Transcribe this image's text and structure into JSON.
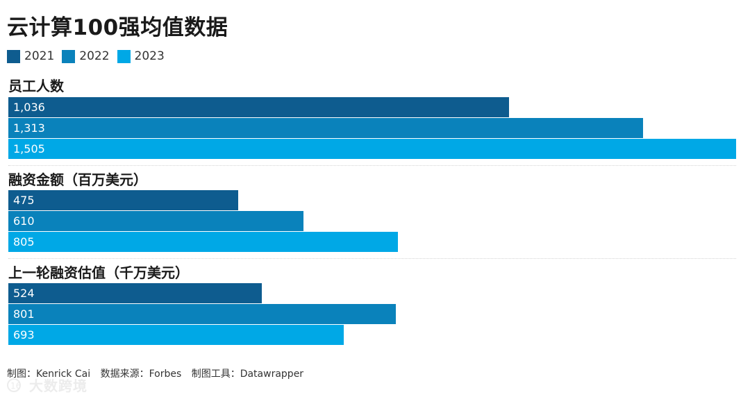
{
  "chart_data": {
    "type": "bar",
    "orientation": "horizontal",
    "title": "云计算100强均值数据",
    "legend": [
      "2021",
      "2022",
      "2023"
    ],
    "legend_position": "top-left",
    "colors": {
      "2021": "#0e5c8f",
      "2022": "#0a82bb",
      "2023": "#00a8e6"
    },
    "panels": [
      {
        "title": "员工人数",
        "labels": [
          "1,036",
          "1,313",
          "1,505"
        ],
        "values": [
          1036,
          1313,
          1505
        ],
        "xlim": [
          0,
          1505
        ]
      },
      {
        "title": "融资金额（百万美元）",
        "labels": [
          "475",
          "610",
          "805"
        ],
        "values": [
          475,
          610,
          805
        ],
        "xlim": [
          0,
          1505
        ]
      },
      {
        "title": "上一轮融资估值（千万美元）",
        "labels": [
          "524",
          "801",
          "693"
        ],
        "values": [
          524,
          801,
          693
        ],
        "xlim": [
          0,
          1505
        ]
      }
    ],
    "grid": false
  },
  "footer": {
    "author": "制图：Kenrick Cai",
    "source": "数据来源：Forbes",
    "tool": "制图工具：Datawrapper"
  },
  "watermark": {
    "text": "大数跨境"
  }
}
